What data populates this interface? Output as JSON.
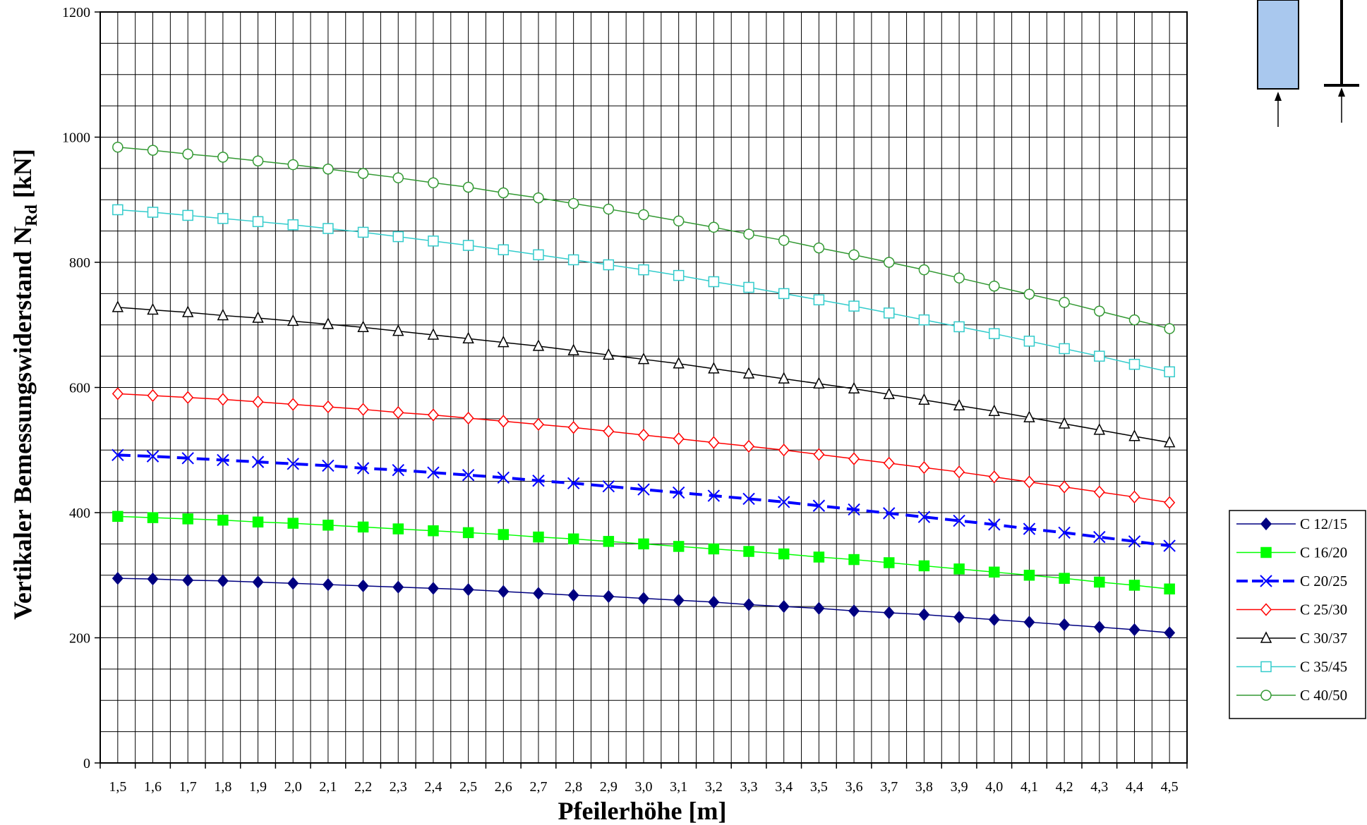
{
  "chart_data": {
    "type": "line",
    "title": "",
    "xlabel": "Pfeilerhöhe [m]",
    "ylabel_main": "Vertikaler Bemessungswiderstand N",
    "ylabel_subscript": "Rd",
    "ylabel_unit": " [kN]",
    "ylim": [
      0,
      1200
    ],
    "y_major_step": 200,
    "y_minor_step": 50,
    "y_tick_labels": [
      "0",
      "200",
      "400",
      "600",
      "800",
      "1000",
      "1200"
    ],
    "grid": true,
    "legend_position": "right",
    "x": [
      1.5,
      1.6,
      1.7,
      1.8,
      1.9,
      2.0,
      2.1,
      2.2,
      2.3,
      2.4,
      2.5,
      2.6,
      2.7,
      2.8,
      2.9,
      3.0,
      3.1,
      3.2,
      3.3,
      3.4,
      3.5,
      3.6,
      3.7,
      3.8,
      3.9,
      4.0,
      4.1,
      4.2,
      4.3,
      4.4,
      4.5
    ],
    "x_tick_labels": [
      "1,5",
      "1,6",
      "1,7",
      "1,8",
      "1,9",
      "2,0",
      "2,1",
      "2,2",
      "2,3",
      "2,4",
      "2,5",
      "2,6",
      "2,7",
      "2,8",
      "2,9",
      "3,0",
      "3,1",
      "3,2",
      "3,3",
      "3,4",
      "3,5",
      "3,6",
      "3,7",
      "3,8",
      "3,9",
      "4,0",
      "4,1",
      "4,2",
      "4,3",
      "4,4",
      "4,5"
    ],
    "series": [
      {
        "name": "C 12/15",
        "color": "#000080",
        "marker": "diamond-filled",
        "dash": "solid",
        "width": 1.5,
        "values": [
          295,
          294,
          292,
          291,
          289,
          287,
          285,
          283,
          281,
          279,
          277,
          274,
          271,
          268,
          266,
          263,
          260,
          257,
          253,
          250,
          247,
          243,
          240,
          237,
          233,
          229,
          225,
          221,
          217,
          213,
          208
        ]
      },
      {
        "name": "C 16/20",
        "color": "#00ff00",
        "marker": "square-filled",
        "dash": "solid",
        "width": 1.5,
        "values": [
          394,
          392,
          390,
          388,
          385,
          383,
          380,
          377,
          374,
          371,
          368,
          365,
          361,
          358,
          354,
          350,
          346,
          342,
          338,
          334,
          329,
          325,
          320,
          315,
          310,
          305,
          300,
          295,
          289,
          284,
          278
        ]
      },
      {
        "name": "C 20/25",
        "color": "#0000ff",
        "marker": "x",
        "dash": "dashed",
        "width": 4,
        "values": [
          492,
          490,
          487,
          484,
          481,
          478,
          475,
          471,
          468,
          464,
          460,
          456,
          451,
          447,
          442,
          437,
          432,
          427,
          422,
          417,
          411,
          405,
          399,
          393,
          387,
          381,
          374,
          368,
          361,
          354,
          347
        ]
      },
      {
        "name": "C 25/30",
        "color": "#ff0000",
        "marker": "diamond-open",
        "dash": "solid",
        "width": 1.5,
        "values": [
          590,
          587,
          584,
          581,
          577,
          573,
          569,
          565,
          560,
          556,
          551,
          546,
          541,
          536,
          530,
          524,
          518,
          512,
          506,
          500,
          493,
          486,
          479,
          472,
          465,
          457,
          449,
          441,
          433,
          425,
          416
        ]
      },
      {
        "name": "C 30/37",
        "color": "#000000",
        "marker": "triangle-open",
        "dash": "solid",
        "width": 1.5,
        "values": [
          728,
          724,
          720,
          715,
          711,
          706,
          701,
          696,
          690,
          684,
          678,
          672,
          666,
          659,
          652,
          645,
          638,
          630,
          622,
          614,
          606,
          598,
          589,
          580,
          571,
          562,
          552,
          542,
          532,
          522,
          512
        ]
      },
      {
        "name": "C 35/45",
        "color": "#33cccc",
        "marker": "square-open",
        "dash": "solid",
        "width": 1.5,
        "values": [
          884,
          880,
          875,
          870,
          865,
          860,
          854,
          848,
          841,
          834,
          827,
          820,
          812,
          804,
          796,
          788,
          779,
          769,
          760,
          750,
          740,
          730,
          719,
          708,
          697,
          686,
          674,
          662,
          650,
          637,
          625
        ]
      },
      {
        "name": "C 40/50",
        "color": "#339933",
        "marker": "circle-open",
        "dash": "solid",
        "width": 1.5,
        "values": [
          984,
          979,
          973,
          968,
          962,
          956,
          949,
          942,
          935,
          927,
          920,
          911,
          903,
          894,
          885,
          876,
          866,
          856,
          845,
          835,
          823,
          812,
          800,
          788,
          775,
          762,
          749,
          736,
          722,
          708,
          694
        ]
      }
    ]
  },
  "inset_icons": [
    {
      "name": "column-section-icon",
      "fill": "#a9c8ee"
    },
    {
      "name": "column-line-icon",
      "fill": "#000000"
    }
  ]
}
